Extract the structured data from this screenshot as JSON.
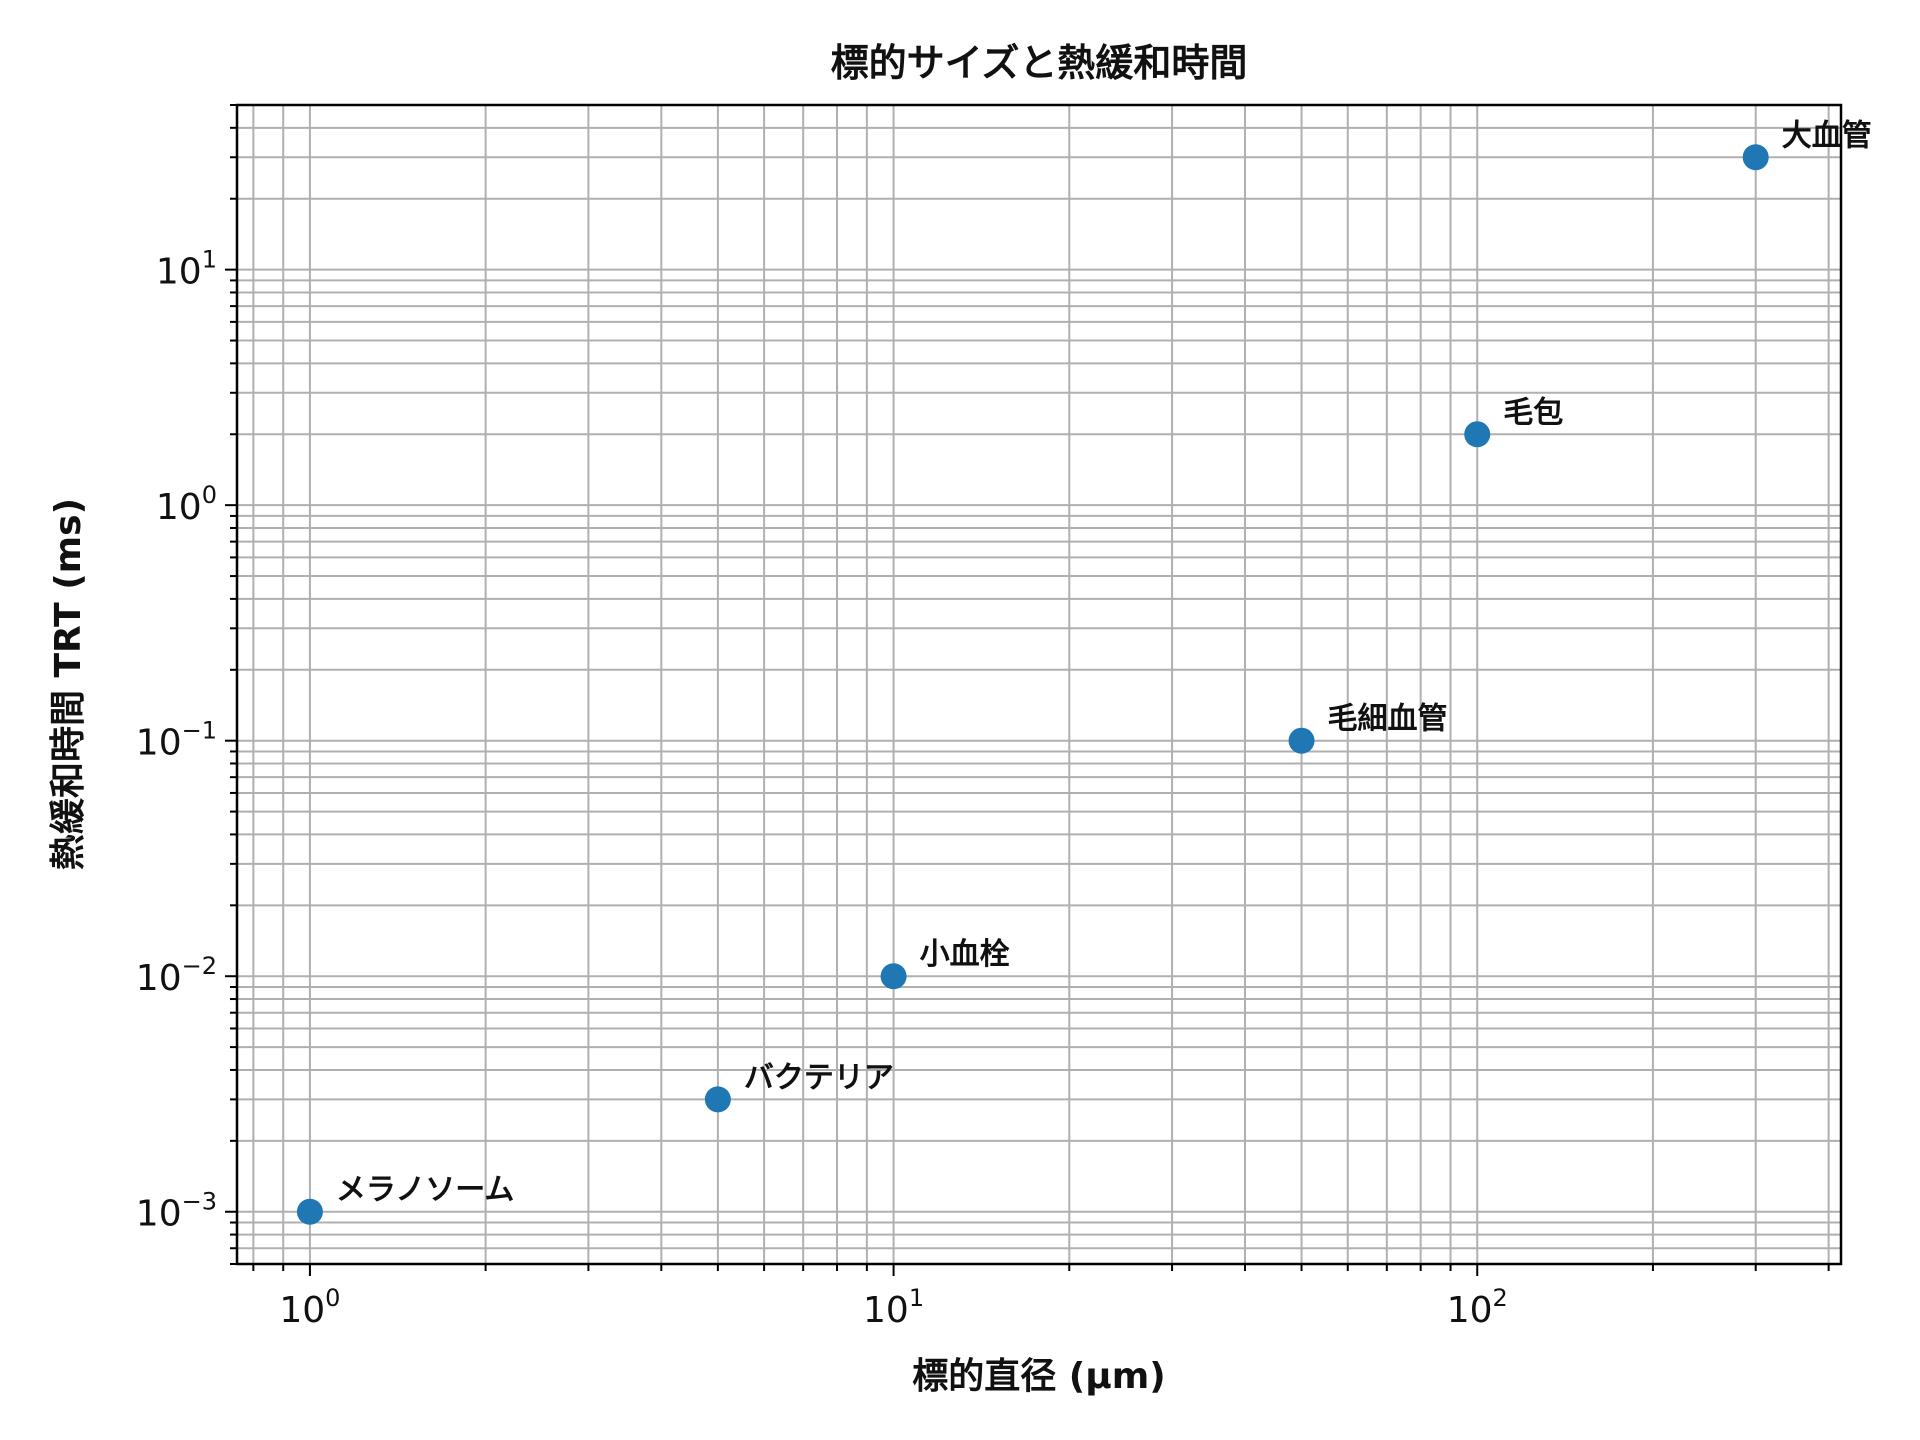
{
  "chart_data": {
    "type": "scatter",
    "title": "標的サイズと熱緩和時間",
    "xlabel": "標的直径 (μm)",
    "ylabel": "熱緩和時間 TRT (ms)",
    "xscale": "log",
    "yscale": "log",
    "xlim": [
      0.75,
      420
    ],
    "ylim": [
      0.0006,
      50
    ],
    "grid": "major and minor",
    "marker_color": "#1f77b4",
    "x_ticks": [
      {
        "value": 1,
        "base": "10",
        "exp": "0"
      },
      {
        "value": 10,
        "base": "10",
        "exp": "1"
      },
      {
        "value": 100,
        "base": "10",
        "exp": "2"
      }
    ],
    "y_ticks": [
      {
        "value": 0.001,
        "base": "10",
        "exp": "−3"
      },
      {
        "value": 0.01,
        "base": "10",
        "exp": "−2"
      },
      {
        "value": 0.1,
        "base": "10",
        "exp": "−1"
      },
      {
        "value": 1,
        "base": "10",
        "exp": "0"
      },
      {
        "value": 10,
        "base": "10",
        "exp": "1"
      }
    ],
    "points": [
      {
        "label": "メラノソーム",
        "x": 1,
        "y": 0.001
      },
      {
        "label": "バクテリア",
        "x": 5,
        "y": 0.003
      },
      {
        "label": "小血栓",
        "x": 10,
        "y": 0.01
      },
      {
        "label": "毛細血管",
        "x": 50,
        "y": 0.1
      },
      {
        "label": "毛包",
        "x": 100,
        "y": 2
      },
      {
        "label": "大血管",
        "x": 300,
        "y": 30
      }
    ]
  }
}
